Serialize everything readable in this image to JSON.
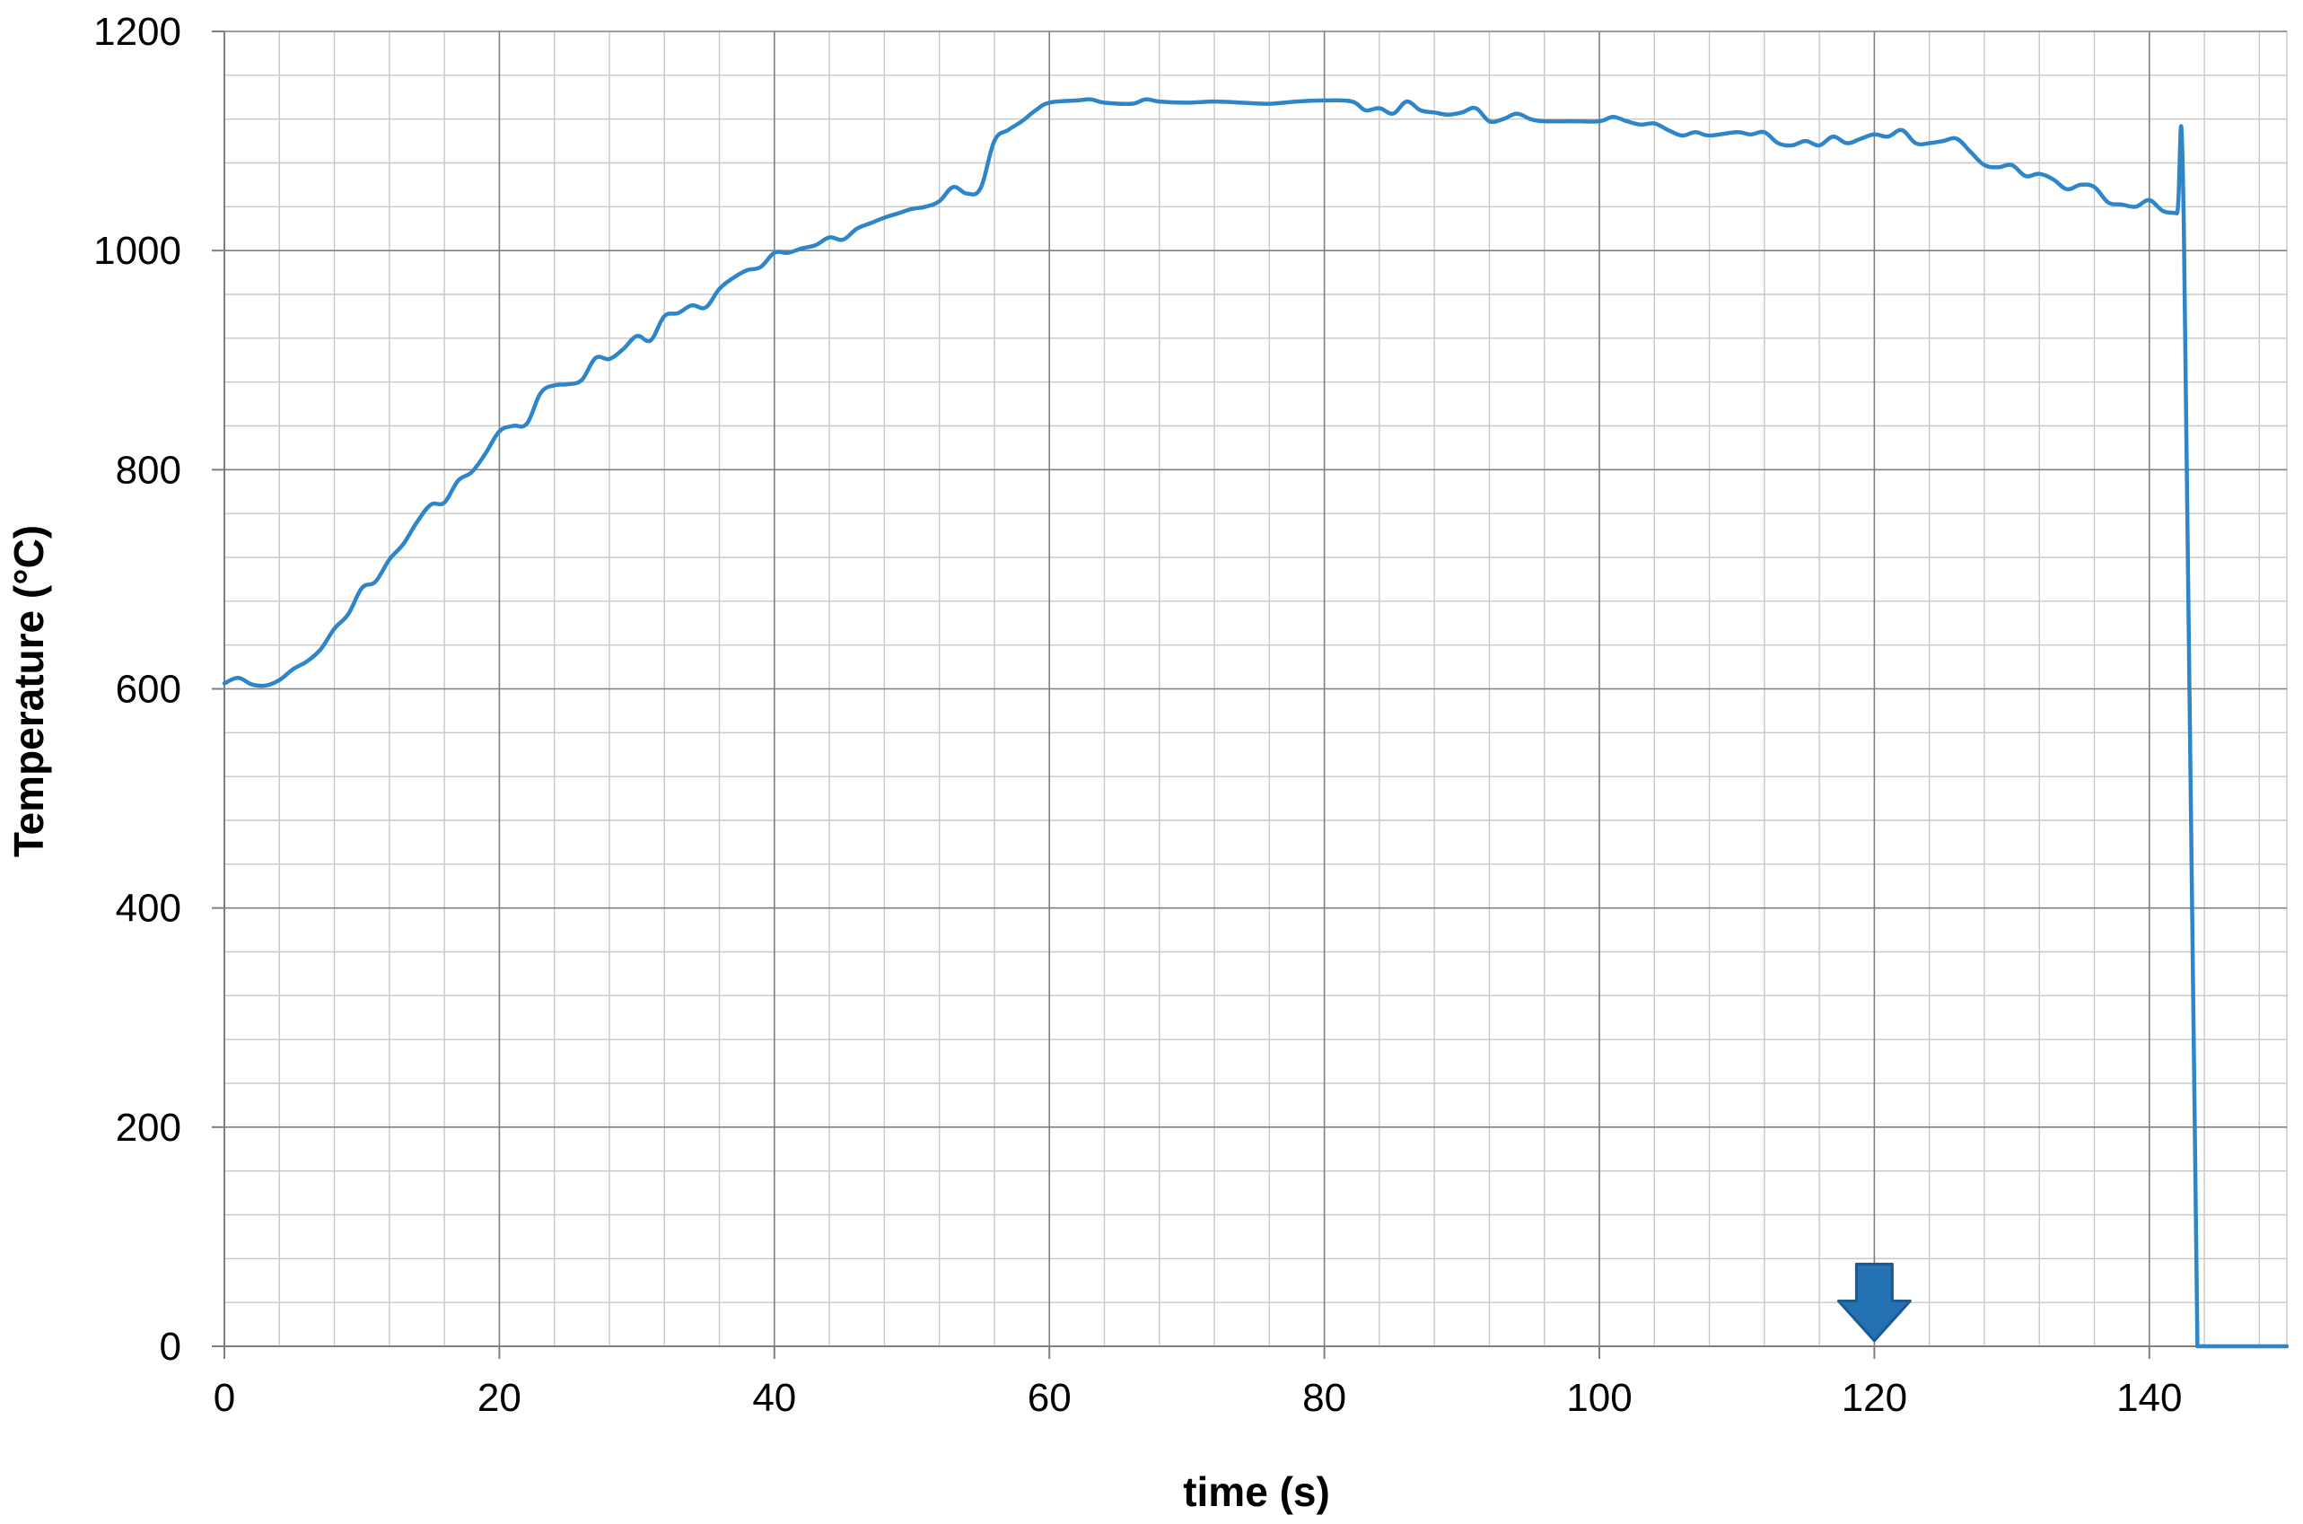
{
  "chart_data": {
    "type": "line",
    "title": "",
    "xlabel": "time (s)",
    "ylabel": "Temperature (°C)",
    "xlim": [
      0,
      150
    ],
    "ylim": [
      0,
      1200
    ],
    "x_ticks": [
      0,
      20,
      40,
      60,
      80,
      100,
      120,
      140
    ],
    "y_ticks": [
      0,
      200,
      400,
      600,
      800,
      1000,
      1200
    ],
    "x_minor_step": 4,
    "y_minor_step": 40,
    "grid": true,
    "legend": "none",
    "colors": {
      "series": "#2e86c8",
      "marker": "#2472b4",
      "marker_edge": "#1a5a90"
    },
    "series": [
      {
        "x": [
          0,
          1,
          2,
          3,
          4,
          5,
          6,
          7,
          8,
          9,
          10,
          11,
          12,
          13,
          14,
          15,
          16,
          17,
          18,
          19,
          20,
          21,
          22,
          23,
          24,
          25,
          26,
          27,
          28,
          29,
          30,
          31,
          32,
          33,
          34,
          35,
          36,
          37,
          38,
          39,
          40,
          41,
          42,
          43,
          44,
          45,
          46,
          47,
          48,
          49,
          50,
          51,
          52,
          53,
          54,
          55,
          56,
          57,
          58,
          59,
          60,
          62,
          63,
          64,
          66,
          67,
          68,
          70,
          72,
          74,
          76,
          78,
          80,
          82,
          83,
          84,
          85,
          86,
          87,
          88,
          89,
          90,
          91,
          92,
          93,
          94,
          95,
          96,
          98,
          100,
          101,
          102,
          103,
          104,
          105,
          106,
          107,
          108,
          110,
          111,
          112,
          113,
          114,
          115,
          116,
          117,
          118,
          119,
          120,
          121,
          122,
          123,
          124,
          125,
          126,
          127,
          128,
          129,
          130,
          131,
          132,
          133,
          134,
          135,
          136,
          137,
          138,
          139,
          140,
          141,
          142,
          142.5,
          143.5,
          150
        ],
        "values": [
          605,
          610,
          604,
          603,
          608,
          618,
          625,
          636,
          655,
          668,
          692,
          698,
          718,
          732,
          752,
          768,
          770,
          790,
          798,
          815,
          835,
          840,
          842,
          870,
          877,
          878,
          882,
          902,
          901,
          910,
          922,
          918,
          940,
          943,
          950,
          948,
          965,
          975,
          982,
          985,
          998,
          998,
          1002,
          1005,
          1012,
          1010,
          1020,
          1025,
          1030,
          1034,
          1038,
          1040,
          1045,
          1058,
          1052,
          1057,
          1100,
          1110,
          1118,
          1128,
          1135,
          1137,
          1138,
          1135,
          1134,
          1138,
          1136,
          1135,
          1136,
          1135,
          1134,
          1136,
          1137,
          1136,
          1128,
          1130,
          1125,
          1136,
          1128,
          1126,
          1124,
          1126,
          1130,
          1118,
          1120,
          1125,
          1120,
          1118,
          1118,
          1118,
          1122,
          1118,
          1115,
          1116,
          1110,
          1105,
          1108,
          1105,
          1108,
          1106,
          1108,
          1098,
          1096,
          1100,
          1096,
          1104,
          1098,
          1102,
          1106,
          1104,
          1110,
          1098,
          1098,
          1100,
          1102,
          1090,
          1078,
          1076,
          1078,
          1068,
          1070,
          1065,
          1056,
          1060,
          1058,
          1044,
          1042,
          1040,
          1046,
          1036,
          1034,
          1030,
          0,
          0
        ]
      }
    ],
    "annotations": [
      {
        "type": "down-arrow",
        "x": 120,
        "y_top": 75,
        "y_bottom": 5
      }
    ]
  }
}
